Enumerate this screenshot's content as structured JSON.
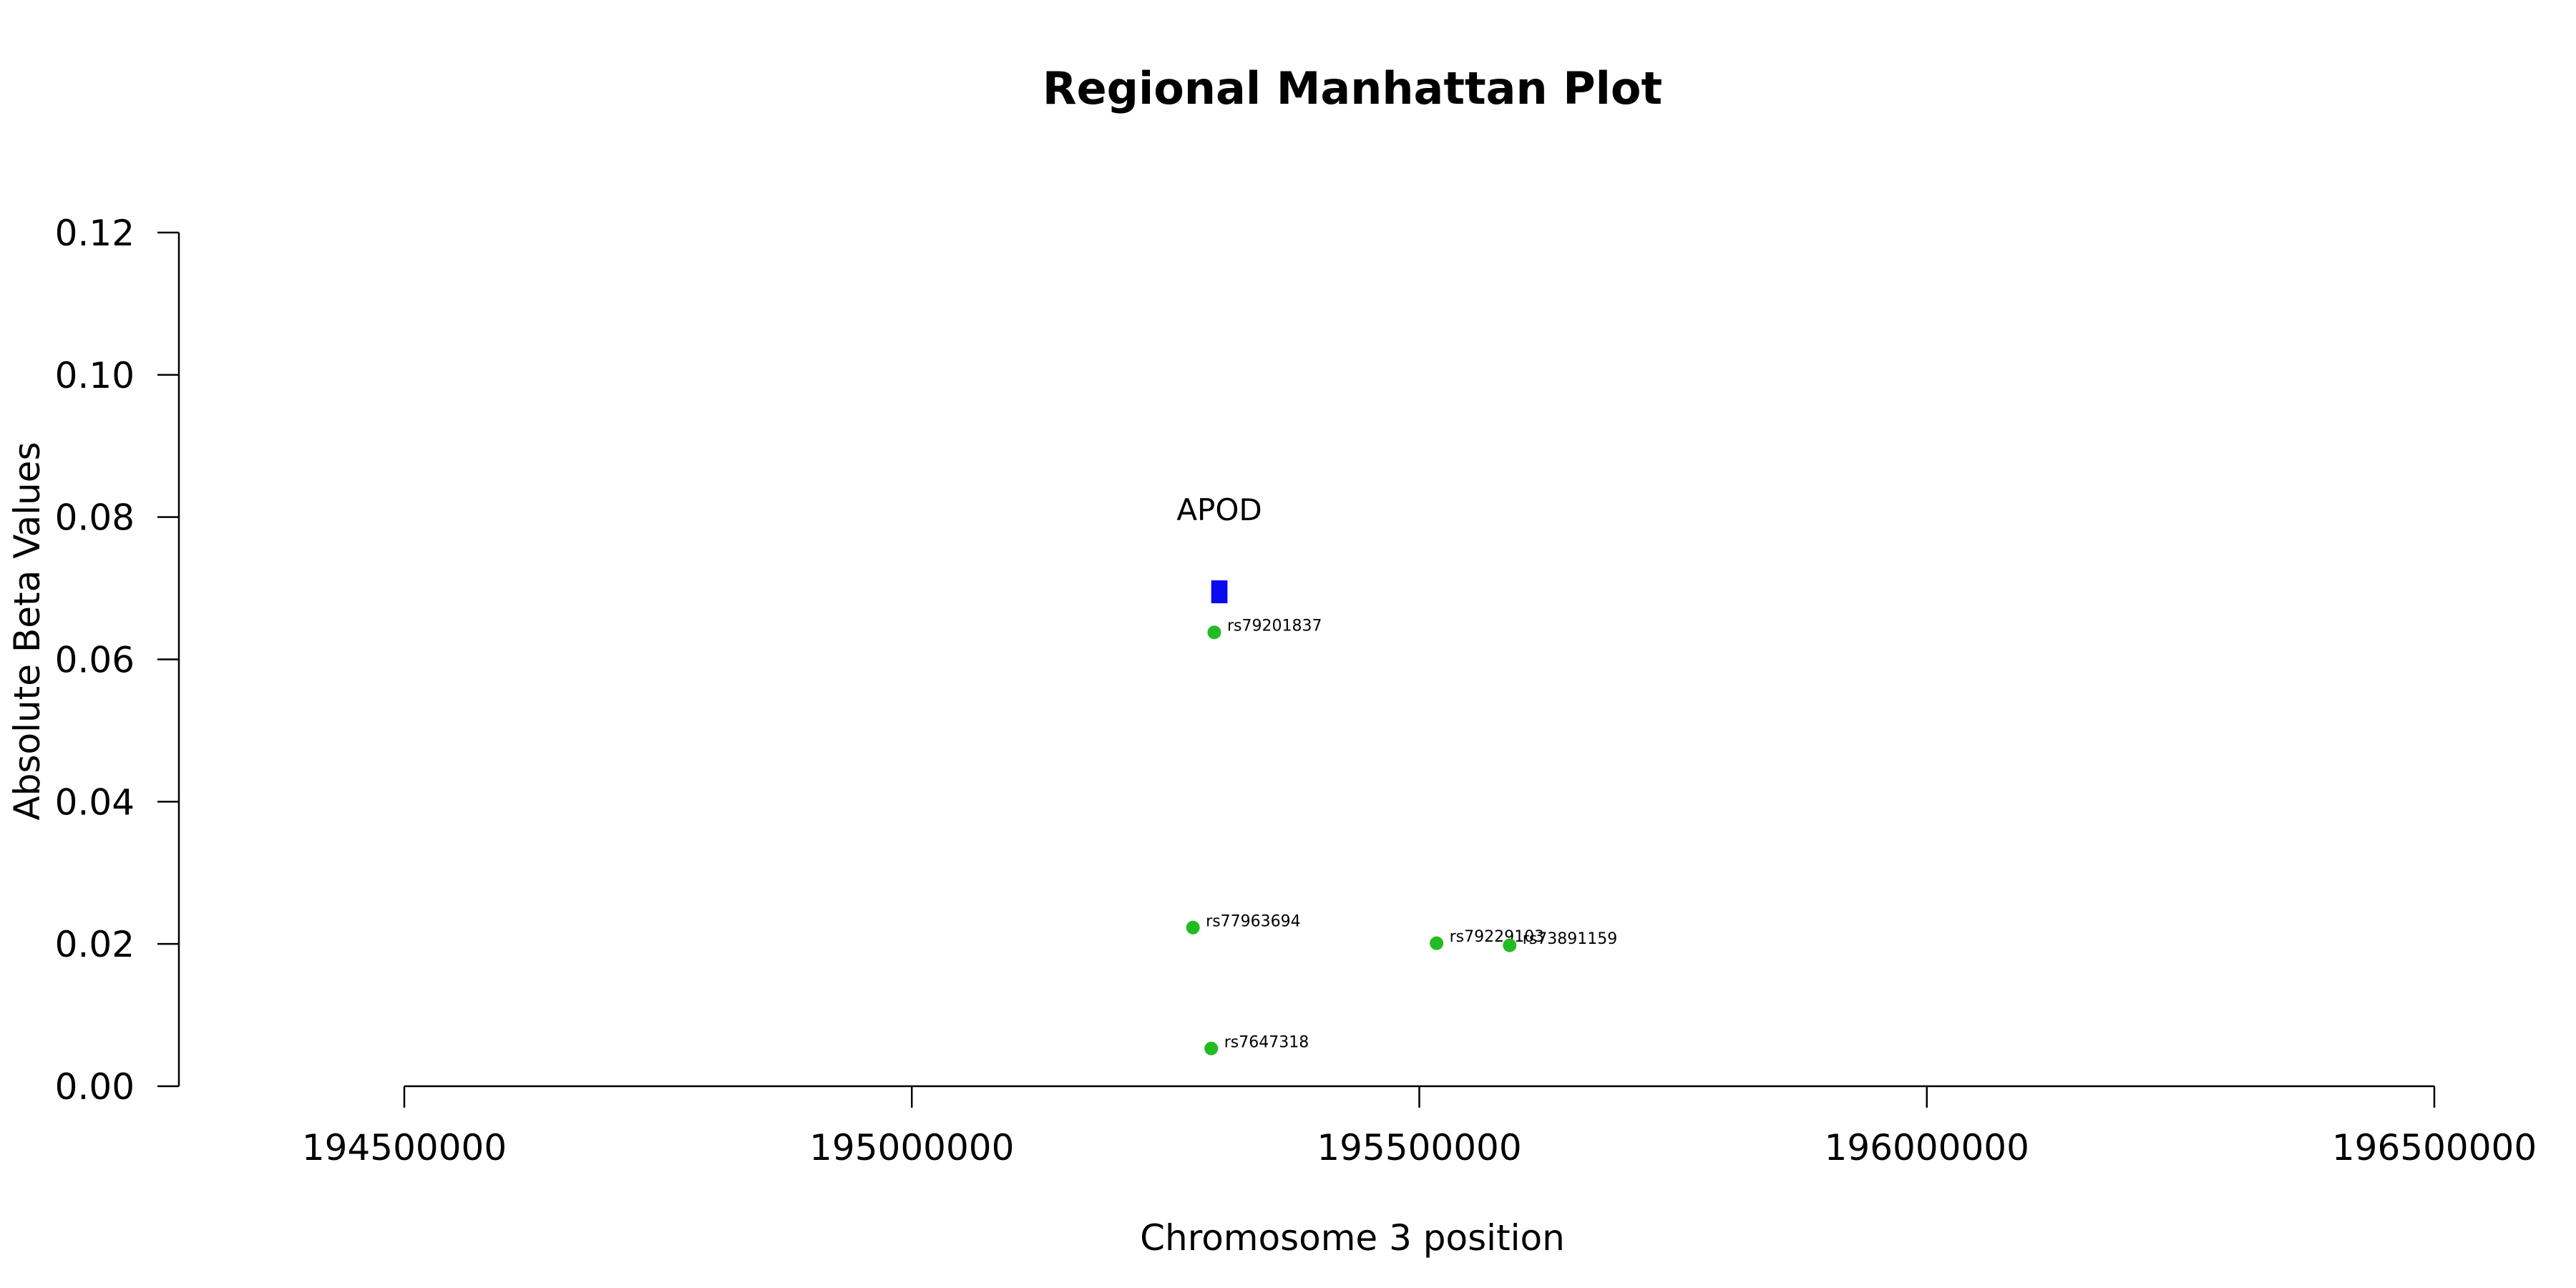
{
  "chart_data": {
    "type": "scatter",
    "title": "Regional Manhattan Plot",
    "xlabel": "Chromosome 3 position",
    "ylabel": "Absolute Beta Values",
    "xlim": [
      194500000,
      196500000
    ],
    "ylim": [
      0,
      0.12
    ],
    "x_ticks": [
      194500000,
      195000000,
      195500000,
      196000000,
      196500000
    ],
    "x_tick_labels": [
      "194500000",
      "195000000",
      "195500000",
      "196000000",
      "196500000"
    ],
    "y_ticks": [
      0,
      0.02,
      0.04,
      0.06,
      0.08,
      0.1,
      0.12
    ],
    "y_tick_labels": [
      "0.00",
      "0.02",
      "0.04",
      "0.06",
      "0.08",
      "0.10",
      "0.12"
    ],
    "grid": false,
    "point_color": "#22bb22",
    "gene_color": "#0a0af0",
    "points": [
      {
        "label": "rs79201837",
        "x": 195298000,
        "y": 0.0638
      },
      {
        "label": "rs77963694",
        "x": 195277000,
        "y": 0.0223
      },
      {
        "label": "rs79229103",
        "x": 195517000,
        "y": 0.0201
      },
      {
        "label": "rs73891159",
        "x": 195589000,
        "y": 0.0198
      },
      {
        "label": "rs7647318",
        "x": 195295000,
        "y": 0.0053
      }
    ],
    "genes": [
      {
        "name": "APOD",
        "start": 195295000,
        "end": 195311000,
        "y": 0.0695
      }
    ]
  }
}
